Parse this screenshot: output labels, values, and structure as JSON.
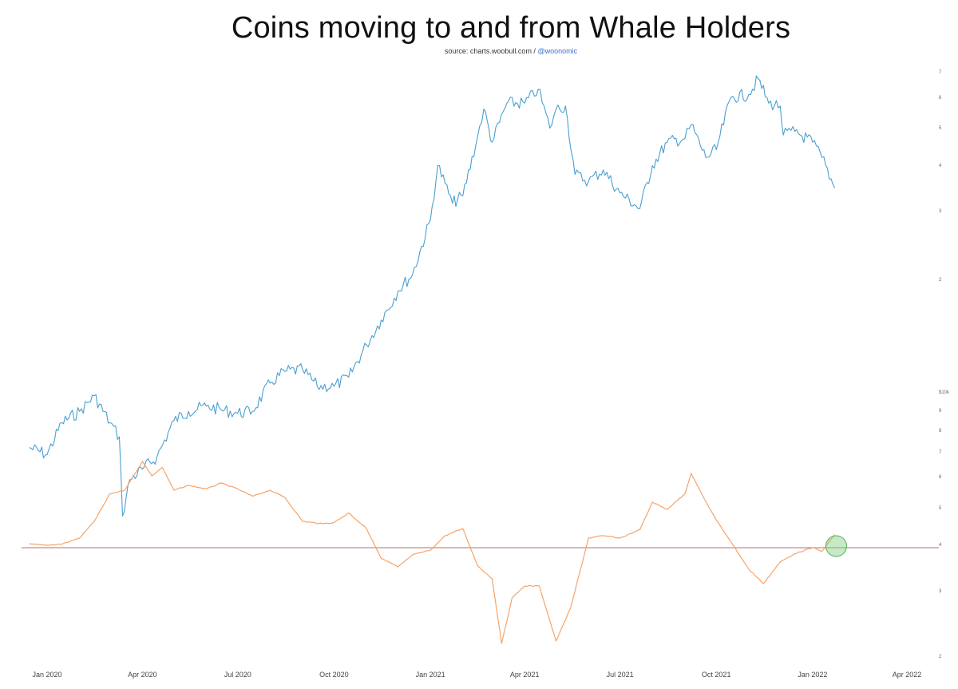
{
  "title": "Coins moving to and from Whale Holders",
  "source_prefix": "source: charts.woobull.com / ",
  "source_handle": "@woonomic",
  "colors": {
    "price_line": "#4a9fd0",
    "oscillator_line": "#f4a46a",
    "zero_line": "#c98a8a",
    "highlight_circle": "#7fd17f"
  },
  "chart_data": [
    {
      "type": "line",
      "title": "",
      "xlabel": "",
      "ylabel": "",
      "scale": "log",
      "ylim": [
        4800,
        70000
      ],
      "x_ticks": [
        "Jan 2020",
        "Apr 2020",
        "Jul 2020",
        "Oct 2020",
        "Jan 2021",
        "Apr 2021",
        "Jul 2021",
        "Oct 2021",
        "Jan 2022",
        "Apr 2022"
      ],
      "y_ticks": [
        "7",
        "6",
        "5",
        "4",
        "3",
        "2",
        "$10k",
        "9",
        "8",
        "7",
        "6",
        "5",
        "4",
        "3",
        "2"
      ],
      "series": [
        {
          "x": [
            "2019-12-15",
            "2020-01-01",
            "2020-01-15",
            "2020-02-01",
            "2020-02-15",
            "2020-03-01",
            "2020-03-10",
            "2020-03-13",
            "2020-03-20",
            "2020-04-01",
            "2020-04-15",
            "2020-05-01",
            "2020-05-15",
            "2020-06-01",
            "2020-06-15",
            "2020-07-01",
            "2020-07-15",
            "2020-08-01",
            "2020-08-15",
            "2020-09-01",
            "2020-09-15",
            "2020-10-01",
            "2020-10-15",
            "2020-11-01",
            "2020-11-15",
            "2020-12-01",
            "2020-12-15",
            "2021-01-01",
            "2021-01-08",
            "2021-01-15",
            "2021-01-22",
            "2021-02-01",
            "2021-02-15",
            "2021-02-21",
            "2021-03-01",
            "2021-03-15",
            "2021-04-01",
            "2021-04-14",
            "2021-04-25",
            "2021-05-01",
            "2021-05-10",
            "2021-05-19",
            "2021-06-01",
            "2021-06-15",
            "2021-07-01",
            "2021-07-20",
            "2021-08-01",
            "2021-08-15",
            "2021-09-01",
            "2021-09-07",
            "2021-09-21",
            "2021-10-01",
            "2021-10-15",
            "2021-11-01",
            "2021-11-10",
            "2021-11-20",
            "2021-12-01",
            "2021-12-04",
            "2021-12-15",
            "2022-01-01",
            "2022-01-10",
            "2022-01-22"
          ],
          "values": [
            7500,
            7200,
            8700,
            9300,
            10200,
            8700,
            8000,
            5000,
            6200,
            6600,
            7100,
            8800,
            9300,
            9600,
            9400,
            9200,
            9300,
            11000,
            11800,
            11900,
            10800,
            10800,
            11400,
            13800,
            16000,
            19000,
            21000,
            29000,
            40000,
            36000,
            32000,
            33500,
            47500,
            56000,
            46000,
            58000,
            58000,
            63000,
            50000,
            56000,
            57000,
            38000,
            36500,
            39000,
            34000,
            31000,
            40000,
            46000,
            47000,
            51000,
            42000,
            44000,
            60000,
            61000,
            67000,
            58000,
            57000,
            48000,
            49000,
            46000,
            42000,
            35000
          ]
        }
      ]
    },
    {
      "type": "line",
      "title": "",
      "xlabel": "",
      "ylabel": "",
      "series": [
        {
          "x": [
            "2019-12-15",
            "2020-01-01",
            "2020-01-15",
            "2020-02-01",
            "2020-02-15",
            "2020-03-01",
            "2020-03-15",
            "2020-04-01",
            "2020-04-10",
            "2020-04-20",
            "2020-05-01",
            "2020-05-15",
            "2020-06-01",
            "2020-06-15",
            "2020-07-01",
            "2020-07-15",
            "2020-08-01",
            "2020-08-15",
            "2020-09-01",
            "2020-09-20",
            "2020-10-01",
            "2020-10-15",
            "2020-11-01",
            "2020-11-15",
            "2020-12-01",
            "2020-12-15",
            "2021-01-01",
            "2021-01-15",
            "2021-02-01",
            "2021-02-15",
            "2021-03-01",
            "2021-03-10",
            "2021-03-20",
            "2021-04-01",
            "2021-04-15",
            "2021-05-01",
            "2021-05-15",
            "2021-06-01",
            "2021-06-15",
            "2021-07-01",
            "2021-07-20",
            "2021-08-01",
            "2021-08-15",
            "2021-09-01",
            "2021-09-07",
            "2021-09-20",
            "2021-10-01",
            "2021-10-15",
            "2021-11-01",
            "2021-11-15",
            "2021-12-01",
            "2021-12-15",
            "2022-01-01",
            "2022-01-10",
            "2022-01-22"
          ],
          "values": [
            0.35,
            0.2,
            0.3,
            0.8,
            2.2,
            4.5,
            4.8,
            7.2,
            6.0,
            6.7,
            4.8,
            5.2,
            4.9,
            5.4,
            4.9,
            4.3,
            4.8,
            4.2,
            2.2,
            2.0,
            2.1,
            2.9,
            1.6,
            -0.9,
            -1.6,
            -0.6,
            -0.2,
            1.0,
            1.6,
            -1.5,
            -2.6,
            -8.0,
            -4.2,
            -3.2,
            -3.2,
            -7.8,
            -5.0,
            0.8,
            1.0,
            0.8,
            1.5,
            3.8,
            3.2,
            4.5,
            6.2,
            4.0,
            2.3,
            0.5,
            -1.8,
            -3.0,
            -1.2,
            -0.5,
            0.0,
            -0.3,
            1.1
          ]
        }
      ]
    }
  ]
}
